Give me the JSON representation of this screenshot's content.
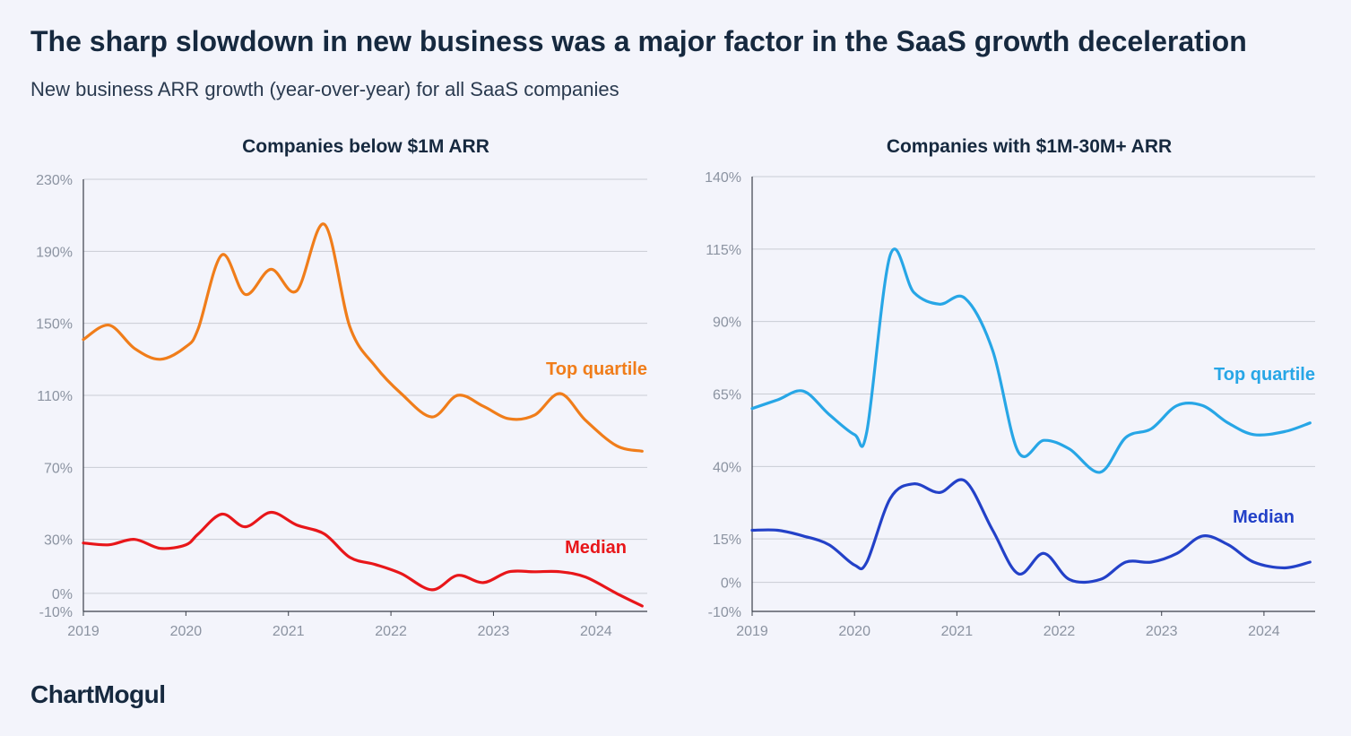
{
  "title": "The sharp slowdown in new business was a major factor in the SaaS growth deceleration",
  "subtitle": "New business ARR growth (year-over-year) for all SaaS companies",
  "brand": "ChartMogul",
  "chart_data": [
    {
      "type": "line",
      "title": "Companies below $1M ARR",
      "xlabel": "",
      "ylabel": "",
      "x_ticks": [
        "2019",
        "2020",
        "2021",
        "2022",
        "2023",
        "2024"
      ],
      "y_ticks": [
        230,
        190,
        150,
        110,
        70,
        30,
        0,
        -10
      ],
      "y_tick_labels": [
        "230%",
        "190%",
        "150%",
        "110%",
        "70%",
        "30%",
        "0%",
        "-10%"
      ],
      "ylim": [
        -10,
        230
      ],
      "xlim": [
        2019,
        2024.5
      ],
      "grid": true,
      "series": [
        {
          "name": "Top quartile",
          "color": "#f07d1a",
          "x": [
            2019.0,
            2019.25,
            2019.5,
            2019.75,
            2020.0,
            2020.12,
            2020.35,
            2020.58,
            2020.83,
            2021.08,
            2021.35,
            2021.6,
            2021.85,
            2022.1,
            2022.4,
            2022.65,
            2022.9,
            2023.15,
            2023.4,
            2023.65,
            2023.9,
            2024.2,
            2024.45
          ],
          "y": [
            141,
            149,
            136,
            130,
            137,
            147,
            188,
            166,
            180,
            168,
            205,
            148,
            126,
            111,
            98,
            110,
            104,
            97,
            99,
            111,
            96,
            82,
            79
          ]
        },
        {
          "name": "Median",
          "color": "#e8161a",
          "x": [
            2019.0,
            2019.25,
            2019.5,
            2019.75,
            2020.0,
            2020.12,
            2020.35,
            2020.58,
            2020.83,
            2021.08,
            2021.35,
            2021.6,
            2021.85,
            2022.1,
            2022.4,
            2022.65,
            2022.9,
            2023.15,
            2023.4,
            2023.65,
            2023.9,
            2024.2,
            2024.45
          ],
          "y": [
            28,
            27,
            30,
            25,
            27,
            33,
            44,
            37,
            45,
            38,
            33,
            20,
            16,
            11,
            2,
            10,
            6,
            12,
            12,
            12,
            9,
            0,
            -7
          ]
        }
      ]
    },
    {
      "type": "line",
      "title": "Companies with $1M-30M+ ARR",
      "xlabel": "",
      "ylabel": "",
      "x_ticks": [
        "2019",
        "2020",
        "2021",
        "2022",
        "2023",
        "2024"
      ],
      "y_ticks": [
        140,
        115,
        90,
        65,
        40,
        15,
        0,
        -10
      ],
      "y_tick_labels": [
        "140%",
        "115%",
        "90%",
        "65%",
        "40%",
        "15%",
        "0%",
        "-10%"
      ],
      "ylim": [
        -10,
        140
      ],
      "xlim": [
        2019,
        2024.5
      ],
      "grid": true,
      "series": [
        {
          "name": "Top quartile",
          "color": "#27a6e6",
          "x": [
            2019.0,
            2019.25,
            2019.5,
            2019.75,
            2020.0,
            2020.12,
            2020.35,
            2020.58,
            2020.83,
            2021.08,
            2021.35,
            2021.6,
            2021.85,
            2022.1,
            2022.4,
            2022.65,
            2022.9,
            2023.15,
            2023.4,
            2023.65,
            2023.9,
            2024.2,
            2024.45
          ],
          "y": [
            60,
            63,
            66,
            58,
            51,
            52,
            113,
            100,
            96,
            98,
            80,
            45,
            49,
            46,
            38,
            50,
            53,
            61,
            61,
            55,
            51,
            52,
            55
          ]
        },
        {
          "name": "Median",
          "color": "#2341c8",
          "x": [
            2019.0,
            2019.25,
            2019.5,
            2019.75,
            2020.0,
            2020.12,
            2020.35,
            2020.58,
            2020.83,
            2021.08,
            2021.35,
            2021.6,
            2021.85,
            2022.1,
            2022.4,
            2022.65,
            2022.9,
            2023.15,
            2023.4,
            2023.65,
            2023.9,
            2024.2,
            2024.45
          ],
          "y": [
            18,
            18,
            16,
            13,
            6,
            7,
            29,
            34,
            31,
            35,
            18,
            3,
            10,
            1,
            1,
            7,
            7,
            10,
            16,
            13,
            7,
            5,
            7
          ]
        }
      ]
    }
  ],
  "panel_layout": [
    {
      "label_colors": [
        "#f07d1a",
        "#e8161a"
      ]
    },
    {
      "label_colors": [
        "#27a6e6",
        "#2341c8"
      ]
    }
  ]
}
